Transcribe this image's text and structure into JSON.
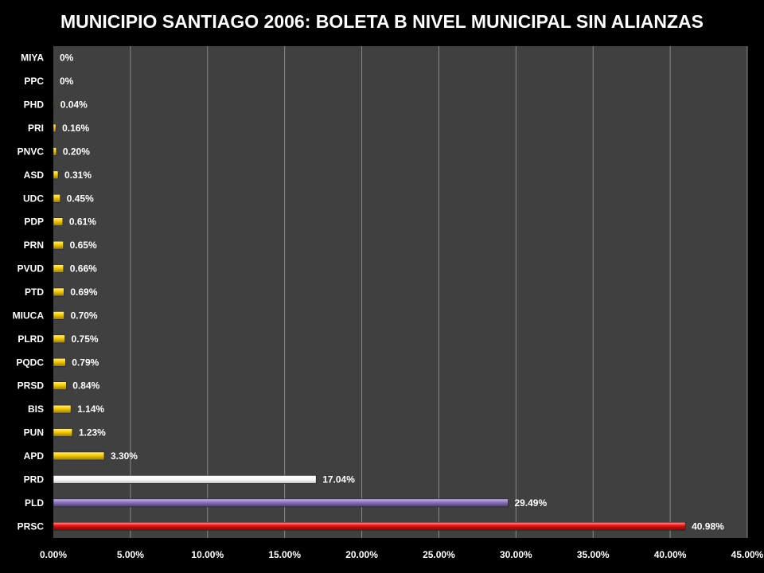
{
  "chart_data": {
    "type": "bar",
    "orientation": "horizontal",
    "title": "MUNICIPIO SANTIAGO 2006: BOLETA B NIVEL MUNICIPAL SIN ALIANZAS",
    "xlabel": "",
    "ylabel": "",
    "xlim": [
      0,
      45
    ],
    "x_ticks": [
      "0.00%",
      "5.00%",
      "10.00%",
      "15.00%",
      "20.00%",
      "25.00%",
      "30.00%",
      "35.00%",
      "40.00%",
      "45.00%"
    ],
    "x_tick_values": [
      0,
      5,
      10,
      15,
      20,
      25,
      30,
      35,
      40,
      45
    ],
    "grid": true,
    "legend": "none",
    "categories": [
      "MIYA",
      "PPC",
      "PHD",
      "PRI",
      "PNVC",
      "ASD",
      "UDC",
      "PDP",
      "PRN",
      "PVUD",
      "PTD",
      "MIUCA",
      "PLRD",
      "PQDC",
      "PRSD",
      "BIS",
      "PUN",
      "APD",
      "PRD",
      "PLD",
      "PRSC"
    ],
    "values": [
      0,
      0,
      0.04,
      0.16,
      0.2,
      0.31,
      0.45,
      0.61,
      0.65,
      0.66,
      0.69,
      0.7,
      0.75,
      0.79,
      0.84,
      1.14,
      1.23,
      3.3,
      17.04,
      29.49,
      40.98
    ],
    "value_labels": [
      "0%",
      "0%",
      "0.04%",
      "0.16%",
      "0.20%",
      "0.31%",
      "0.45%",
      "0.61%",
      "0.65%",
      "0.66%",
      "0.69%",
      "0.70%",
      "0.75%",
      "0.79%",
      "0.84%",
      "1.14%",
      "1.23%",
      "3.30%",
      "17.04%",
      "29.49%",
      "40.98%"
    ],
    "bar_colors": [
      "#f2c800",
      "#f2c800",
      "#f2c800",
      "#f2c800",
      "#f2c800",
      "#f2c800",
      "#f2c800",
      "#f2c800",
      "#f2c800",
      "#f2c800",
      "#f2c800",
      "#f2c800",
      "#f2c800",
      "#f2c800",
      "#f2c800",
      "#f2c800",
      "#f2c800",
      "#f2c800",
      "#ffffff",
      "#8a72b8",
      "#e01010"
    ]
  },
  "colors": {
    "background": "#000000",
    "plot_area": "#404040",
    "gridline": "#8a8a8a"
  }
}
